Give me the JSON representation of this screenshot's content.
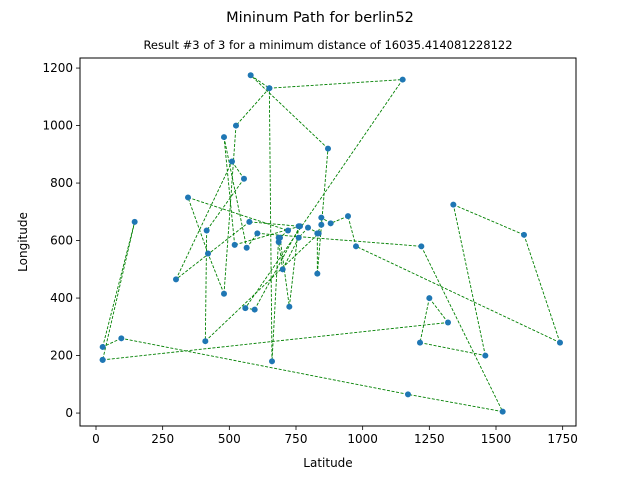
{
  "chart_data": {
    "type": "scatter",
    "title": "Mininum Path for berlin52",
    "subtitle": "Result #3 of 3 for a minimum distance of 16035.414081228122",
    "xlabel": "Latitude",
    "ylabel": "Longitude",
    "xlim": [
      -60,
      1800
    ],
    "ylim": [
      -45,
      1235
    ],
    "xticks": [
      0,
      250,
      500,
      750,
      1000,
      1250,
      1500,
      1750
    ],
    "yticks": [
      0,
      200,
      400,
      600,
      800,
      1000,
      1200
    ],
    "grid": false,
    "colors": {
      "point": "#1f77b4",
      "path": "#008000"
    },
    "path": [
      [
        25,
        185
      ],
      [
        1320,
        315
      ],
      [
        1250,
        400
      ],
      [
        1215,
        245
      ],
      [
        1460,
        200
      ],
      [
        1340,
        725
      ],
      [
        1605,
        620
      ],
      [
        1740,
        245
      ],
      [
        975,
        580
      ],
      [
        945,
        685
      ],
      [
        880,
        660
      ],
      [
        845,
        680
      ],
      [
        845,
        655
      ],
      [
        830,
        625
      ],
      [
        830,
        485
      ],
      [
        870,
        920
      ],
      [
        580,
        1175
      ],
      [
        650,
        1130
      ],
      [
        525,
        1000
      ],
      [
        480,
        415
      ],
      [
        420,
        555
      ],
      [
        345,
        750
      ],
      [
        720,
        635
      ],
      [
        690,
        610
      ],
      [
        725,
        370
      ],
      [
        760,
        650
      ],
      [
        575,
        665
      ],
      [
        300,
        465
      ],
      [
        510,
        875
      ],
      [
        555,
        815
      ],
      [
        415,
        635
      ],
      [
        410,
        250
      ],
      [
        835,
        625
      ],
      [
        795,
        645
      ],
      [
        760,
        610
      ],
      [
        700,
        500
      ],
      [
        685,
        595
      ],
      [
        685,
        610
      ],
      [
        660,
        180
      ],
      [
        650,
        1130
      ],
      [
        1150,
        1160
      ],
      [
        560,
        365
      ],
      [
        595,
        360
      ],
      [
        765,
        650
      ],
      [
        520,
        585
      ],
      [
        480,
        960
      ],
      [
        565,
        575
      ],
      [
        605,
        625
      ],
      [
        1220,
        580
      ],
      [
        1525,
        5
      ],
      [
        1170,
        65
      ],
      [
        95,
        260
      ],
      [
        25,
        230
      ],
      [
        145,
        665
      ],
      [
        25,
        185
      ]
    ]
  }
}
